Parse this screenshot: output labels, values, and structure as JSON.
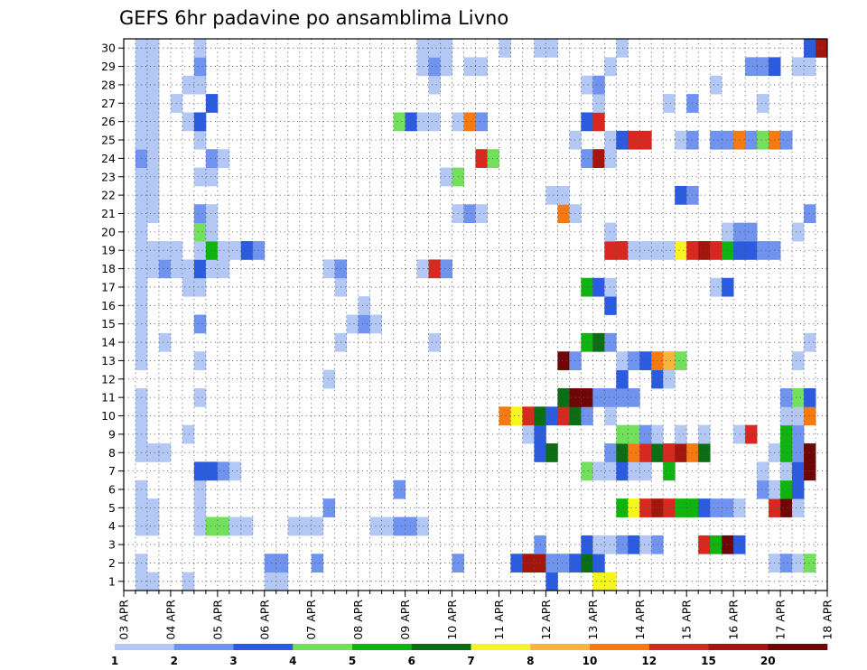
{
  "chart_data": {
    "type": "heatmap",
    "title": "GEFS 6hr padavine po ansamblima Livno",
    "xlabel": "",
    "ylabel": "",
    "x_tick_labels": [
      "03 APR",
      "04 APR",
      "05 APR",
      "06 APR",
      "07 APR",
      "08 APR",
      "09 APR",
      "10 APR",
      "11 APR",
      "12 APR",
      "13 APR",
      "14 APR",
      "15 APR",
      "16 APR",
      "17 APR",
      "18 APR"
    ],
    "x_steps_per_day": 4,
    "x_range": [
      0,
      60
    ],
    "y_tick_labels": [
      "1",
      "2",
      "3",
      "4",
      "5",
      "6",
      "7",
      "8",
      "9",
      "10",
      "11",
      "12",
      "13",
      "14",
      "15",
      "16",
      "17",
      "18",
      "19",
      "20",
      "21",
      "22",
      "23",
      "24",
      "25",
      "26",
      "27",
      "28",
      "29",
      "30"
    ],
    "y_range": [
      0.5,
      30.5
    ],
    "grid": true,
    "legend_placement": "bottom",
    "colorbar": {
      "tick_labels": [
        "1",
        "2",
        "3",
        "4",
        "5",
        "6",
        "7",
        "8",
        "10",
        "12",
        "15",
        "20"
      ],
      "colors": [
        "#b4c8f5",
        "#6f93ee",
        "#2b5ce0",
        "#72e05a",
        "#10b410",
        "#0b6e14",
        "#f6f61e",
        "#f9b440",
        "#f57a12",
        "#d92820",
        "#a2160e",
        "#6e0606"
      ]
    },
    "cells": [
      [
        1,
        1,
        0
      ],
      [
        1,
        2,
        0
      ],
      [
        2,
        1,
        0
      ],
      [
        5,
        1,
        0
      ],
      [
        12,
        1,
        0
      ],
      [
        13,
        1,
        0
      ],
      [
        36,
        1,
        2
      ],
      [
        40,
        1,
        6
      ],
      [
        41,
        1,
        6
      ],
      [
        12,
        2,
        1
      ],
      [
        13,
        2,
        1
      ],
      [
        16,
        2,
        1
      ],
      [
        28,
        2,
        1
      ],
      [
        33,
        2,
        2
      ],
      [
        34,
        2,
        10
      ],
      [
        35,
        2,
        10
      ],
      [
        36,
        2,
        1
      ],
      [
        37,
        2,
        1
      ],
      [
        38,
        2,
        2
      ],
      [
        39,
        2,
        5
      ],
      [
        40,
        2,
        2
      ],
      [
        55,
        2,
        0
      ],
      [
        56,
        2,
        1
      ],
      [
        57,
        2,
        0
      ],
      [
        58,
        2,
        3
      ],
      [
        35,
        3,
        1
      ],
      [
        39,
        3,
        2
      ],
      [
        40,
        3,
        0
      ],
      [
        41,
        3,
        0
      ],
      [
        42,
        3,
        1
      ],
      [
        43,
        3,
        2
      ],
      [
        44,
        3,
        0
      ],
      [
        45,
        3,
        1
      ],
      [
        49,
        3,
        9
      ],
      [
        50,
        3,
        4
      ],
      [
        51,
        3,
        11
      ],
      [
        52,
        3,
        2
      ],
      [
        1,
        4,
        0
      ],
      [
        2,
        4,
        0
      ],
      [
        6,
        4,
        0
      ],
      [
        7,
        4,
        3
      ],
      [
        8,
        4,
        3
      ],
      [
        9,
        4,
        0
      ],
      [
        10,
        4,
        0
      ],
      [
        14,
        4,
        0
      ],
      [
        15,
        4,
        0
      ],
      [
        16,
        4,
        0
      ],
      [
        21,
        4,
        0
      ],
      [
        22,
        4,
        0
      ],
      [
        23,
        4,
        1
      ],
      [
        24,
        4,
        1
      ],
      [
        25,
        4,
        0
      ],
      [
        1,
        5,
        0
      ],
      [
        2,
        5,
        0
      ],
      [
        6,
        5,
        0
      ],
      [
        17,
        5,
        1
      ],
      [
        42,
        5,
        4
      ],
      [
        43,
        5,
        6
      ],
      [
        44,
        5,
        9
      ],
      [
        45,
        5,
        10
      ],
      [
        46,
        5,
        9
      ],
      [
        47,
        5,
        4
      ],
      [
        48,
        5,
        4
      ],
      [
        49,
        5,
        2
      ],
      [
        50,
        5,
        1
      ],
      [
        51,
        5,
        1
      ],
      [
        52,
        5,
        0
      ],
      [
        55,
        5,
        9
      ],
      [
        56,
        5,
        11
      ],
      [
        57,
        5,
        0
      ],
      [
        1,
        6,
        0
      ],
      [
        6,
        6,
        0
      ],
      [
        23,
        6,
        1
      ],
      [
        54,
        6,
        1
      ],
      [
        55,
        6,
        0
      ],
      [
        56,
        6,
        4
      ],
      [
        57,
        6,
        2
      ],
      [
        6,
        7,
        2
      ],
      [
        7,
        7,
        2
      ],
      [
        8,
        7,
        1
      ],
      [
        9,
        7,
        0
      ],
      [
        39,
        7,
        3
      ],
      [
        40,
        7,
        0
      ],
      [
        41,
        7,
        0
      ],
      [
        42,
        7,
        2
      ],
      [
        43,
        7,
        0
      ],
      [
        44,
        7,
        0
      ],
      [
        46,
        7,
        4
      ],
      [
        54,
        7,
        0
      ],
      [
        56,
        7,
        0
      ],
      [
        57,
        7,
        2
      ],
      [
        58,
        7,
        11
      ],
      [
        1,
        8,
        0
      ],
      [
        2,
        8,
        0
      ],
      [
        3,
        8,
        0
      ],
      [
        35,
        8,
        2
      ],
      [
        36,
        8,
        5
      ],
      [
        41,
        8,
        1
      ],
      [
        42,
        8,
        5
      ],
      [
        43,
        8,
        8
      ],
      [
        44,
        8,
        9
      ],
      [
        45,
        8,
        5
      ],
      [
        46,
        8,
        9
      ],
      [
        47,
        8,
        10
      ],
      [
        48,
        8,
        8
      ],
      [
        49,
        8,
        5
      ],
      [
        55,
        8,
        0
      ],
      [
        56,
        8,
        4
      ],
      [
        57,
        8,
        1
      ],
      [
        58,
        8,
        11
      ],
      [
        1,
        9,
        0
      ],
      [
        5,
        9,
        0
      ],
      [
        34,
        9,
        0
      ],
      [
        35,
        9,
        2
      ],
      [
        42,
        9,
        3
      ],
      [
        43,
        9,
        3
      ],
      [
        44,
        9,
        1
      ],
      [
        45,
        9,
        0
      ],
      [
        47,
        9,
        0
      ],
      [
        49,
        9,
        0
      ],
      [
        52,
        9,
        0
      ],
      [
        53,
        9,
        9
      ],
      [
        56,
        9,
        4
      ],
      [
        57,
        9,
        1
      ],
      [
        1,
        10,
        0
      ],
      [
        32,
        10,
        8
      ],
      [
        33,
        10,
        6
      ],
      [
        34,
        10,
        9
      ],
      [
        35,
        10,
        5
      ],
      [
        36,
        10,
        2
      ],
      [
        37,
        10,
        9
      ],
      [
        38,
        10,
        5
      ],
      [
        39,
        10,
        1
      ],
      [
        41,
        10,
        0
      ],
      [
        56,
        10,
        0
      ],
      [
        57,
        10,
        0
      ],
      [
        58,
        10,
        8
      ],
      [
        1,
        11,
        0
      ],
      [
        6,
        11,
        0
      ],
      [
        37,
        11,
        5
      ],
      [
        38,
        11,
        11
      ],
      [
        39,
        11,
        11
      ],
      [
        40,
        11,
        1
      ],
      [
        41,
        11,
        1
      ],
      [
        42,
        11,
        1
      ],
      [
        43,
        11,
        1
      ],
      [
        56,
        11,
        1
      ],
      [
        57,
        11,
        3
      ],
      [
        58,
        11,
        2
      ],
      [
        17,
        12,
        0
      ],
      [
        42,
        12,
        2
      ],
      [
        45,
        12,
        2
      ],
      [
        46,
        12,
        0
      ],
      [
        1,
        13,
        0
      ],
      [
        6,
        13,
        0
      ],
      [
        37,
        13,
        11
      ],
      [
        38,
        13,
        1
      ],
      [
        42,
        13,
        0
      ],
      [
        43,
        13,
        1
      ],
      [
        44,
        13,
        2
      ],
      [
        45,
        13,
        8
      ],
      [
        46,
        13,
        7
      ],
      [
        47,
        13,
        3
      ],
      [
        57,
        13,
        0
      ],
      [
        1,
        14,
        0
      ],
      [
        3,
        14,
        0
      ],
      [
        18,
        14,
        0
      ],
      [
        26,
        14,
        0
      ],
      [
        39,
        14,
        4
      ],
      [
        40,
        14,
        5
      ],
      [
        41,
        14,
        1
      ],
      [
        58,
        14,
        0
      ],
      [
        1,
        15,
        0
      ],
      [
        6,
        15,
        1
      ],
      [
        19,
        15,
        0
      ],
      [
        20,
        15,
        1
      ],
      [
        21,
        15,
        0
      ],
      [
        1,
        16,
        0
      ],
      [
        20,
        16,
        0
      ],
      [
        41,
        16,
        2
      ],
      [
        1,
        17,
        0
      ],
      [
        5,
        17,
        0
      ],
      [
        6,
        17,
        0
      ],
      [
        18,
        17,
        0
      ],
      [
        39,
        17,
        4
      ],
      [
        40,
        17,
        2
      ],
      [
        41,
        17,
        0
      ],
      [
        50,
        17,
        0
      ],
      [
        51,
        17,
        2
      ],
      [
        1,
        18,
        0
      ],
      [
        2,
        18,
        0
      ],
      [
        3,
        18,
        1
      ],
      [
        4,
        18,
        0
      ],
      [
        5,
        18,
        0
      ],
      [
        6,
        18,
        2
      ],
      [
        7,
        18,
        0
      ],
      [
        8,
        18,
        0
      ],
      [
        17,
        18,
        0
      ],
      [
        18,
        18,
        1
      ],
      [
        25,
        18,
        0
      ],
      [
        26,
        18,
        9
      ],
      [
        27,
        18,
        1
      ],
      [
        1,
        19,
        0
      ],
      [
        2,
        19,
        0
      ],
      [
        3,
        19,
        0
      ],
      [
        4,
        19,
        0
      ],
      [
        6,
        19,
        0
      ],
      [
        7,
        19,
        4
      ],
      [
        8,
        19,
        0
      ],
      [
        9,
        19,
        0
      ],
      [
        10,
        19,
        2
      ],
      [
        11,
        19,
        1
      ],
      [
        41,
        19,
        9
      ],
      [
        42,
        19,
        9
      ],
      [
        43,
        19,
        0
      ],
      [
        44,
        19,
        0
      ],
      [
        45,
        19,
        0
      ],
      [
        46,
        19,
        0
      ],
      [
        47,
        19,
        6
      ],
      [
        48,
        19,
        9
      ],
      [
        49,
        19,
        10
      ],
      [
        50,
        19,
        9
      ],
      [
        51,
        19,
        4
      ],
      [
        52,
        19,
        2
      ],
      [
        53,
        19,
        2
      ],
      [
        54,
        19,
        1
      ],
      [
        55,
        19,
        1
      ],
      [
        1,
        20,
        0
      ],
      [
        6,
        20,
        3
      ],
      [
        7,
        20,
        0
      ],
      [
        41,
        20,
        0
      ],
      [
        51,
        20,
        0
      ],
      [
        52,
        20,
        1
      ],
      [
        53,
        20,
        1
      ],
      [
        57,
        20,
        0
      ],
      [
        1,
        21,
        0
      ],
      [
        2,
        21,
        0
      ],
      [
        6,
        21,
        1
      ],
      [
        7,
        21,
        0
      ],
      [
        28,
        21,
        0
      ],
      [
        29,
        21,
        1
      ],
      [
        30,
        21,
        0
      ],
      [
        37,
        21,
        8
      ],
      [
        38,
        21,
        0
      ],
      [
        58,
        21,
        1
      ],
      [
        1,
        22,
        0
      ],
      [
        2,
        22,
        0
      ],
      [
        36,
        22,
        0
      ],
      [
        37,
        22,
        0
      ],
      [
        47,
        22,
        2
      ],
      [
        48,
        22,
        1
      ],
      [
        1,
        23,
        0
      ],
      [
        2,
        23,
        0
      ],
      [
        6,
        23,
        0
      ],
      [
        7,
        23,
        0
      ],
      [
        27,
        23,
        0
      ],
      [
        28,
        23,
        3
      ],
      [
        1,
        24,
        1
      ],
      [
        2,
        24,
        0
      ],
      [
        7,
        24,
        1
      ],
      [
        8,
        24,
        0
      ],
      [
        30,
        24,
        9
      ],
      [
        31,
        24,
        3
      ],
      [
        39,
        24,
        1
      ],
      [
        40,
        24,
        10
      ],
      [
        41,
        24,
        0
      ],
      [
        1,
        25,
        0
      ],
      [
        2,
        25,
        0
      ],
      [
        6,
        25,
        0
      ],
      [
        38,
        25,
        0
      ],
      [
        41,
        25,
        0
      ],
      [
        42,
        25,
        2
      ],
      [
        43,
        25,
        9
      ],
      [
        44,
        25,
        9
      ],
      [
        47,
        25,
        0
      ],
      [
        48,
        25,
        1
      ],
      [
        50,
        25,
        1
      ],
      [
        51,
        25,
        1
      ],
      [
        52,
        25,
        8
      ],
      [
        53,
        25,
        1
      ],
      [
        54,
        25,
        3
      ],
      [
        55,
        25,
        8
      ],
      [
        56,
        25,
        1
      ],
      [
        1,
        26,
        0
      ],
      [
        2,
        26,
        0
      ],
      [
        5,
        26,
        0
      ],
      [
        6,
        26,
        2
      ],
      [
        23,
        26,
        3
      ],
      [
        24,
        26,
        2
      ],
      [
        25,
        26,
        0
      ],
      [
        26,
        26,
        0
      ],
      [
        28,
        26,
        0
      ],
      [
        29,
        26,
        8
      ],
      [
        30,
        26,
        1
      ],
      [
        39,
        26,
        2
      ],
      [
        40,
        26,
        9
      ],
      [
        1,
        27,
        0
      ],
      [
        2,
        27,
        0
      ],
      [
        4,
        27,
        0
      ],
      [
        7,
        27,
        2
      ],
      [
        40,
        27,
        0
      ],
      [
        46,
        27,
        0
      ],
      [
        48,
        27,
        1
      ],
      [
        54,
        27,
        0
      ],
      [
        1,
        28,
        0
      ],
      [
        2,
        28,
        0
      ],
      [
        5,
        28,
        0
      ],
      [
        6,
        28,
        0
      ],
      [
        26,
        28,
        0
      ],
      [
        39,
        28,
        0
      ],
      [
        40,
        28,
        1
      ],
      [
        50,
        28,
        0
      ],
      [
        1,
        29,
        0
      ],
      [
        2,
        29,
        0
      ],
      [
        6,
        29,
        1
      ],
      [
        25,
        29,
        0
      ],
      [
        26,
        29,
        1
      ],
      [
        27,
        29,
        0
      ],
      [
        29,
        29,
        0
      ],
      [
        30,
        29,
        0
      ],
      [
        41,
        29,
        0
      ],
      [
        53,
        29,
        1
      ],
      [
        54,
        29,
        1
      ],
      [
        55,
        29,
        2
      ],
      [
        57,
        29,
        0
      ],
      [
        58,
        29,
        0
      ],
      [
        1,
        30,
        0
      ],
      [
        2,
        30,
        0
      ],
      [
        6,
        30,
        0
      ],
      [
        25,
        30,
        0
      ],
      [
        26,
        30,
        0
      ],
      [
        27,
        30,
        0
      ],
      [
        32,
        30,
        0
      ],
      [
        35,
        30,
        0
      ],
      [
        36,
        30,
        0
      ],
      [
        42,
        30,
        0
      ],
      [
        58,
        30,
        2
      ],
      [
        59,
        30,
        10
      ],
      [
        1,
        0,
        0
      ],
      [
        46,
        0,
        0
      ],
      [
        48,
        0,
        0
      ]
    ]
  }
}
